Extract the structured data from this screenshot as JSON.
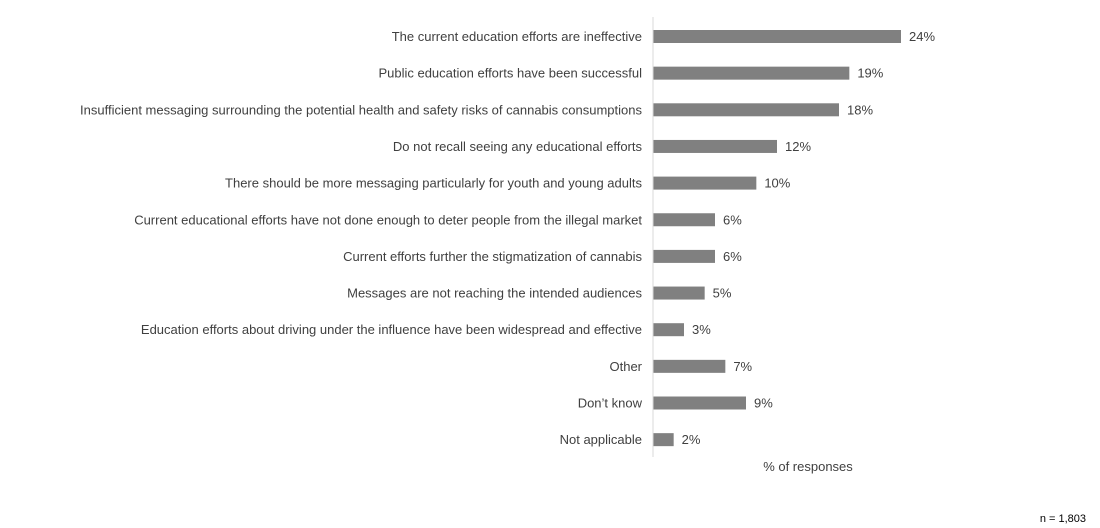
{
  "chart_data": {
    "type": "bar",
    "orientation": "horizontal",
    "categories": [
      "The current education efforts are ineffective",
      "Public education efforts have been successful",
      "Insufficient messaging surrounding the potential health and safety risks of cannabis consumptions",
      "Do not recall seeing any educational efforts",
      "There should be more messaging particularly for youth and young adults",
      "Current educational efforts have not done enough to deter people from the illegal market",
      "Current efforts further the stigmatization of cannabis",
      "Messages are not reaching the intended audiences",
      "Education efforts about driving under the influence have been widespread and effective",
      "Other",
      "Don’t know",
      "Not applicable"
    ],
    "values": [
      24,
      19,
      18,
      12,
      10,
      6,
      6,
      5,
      3,
      7,
      9,
      2
    ],
    "value_labels": [
      "24%",
      "19%",
      "18%",
      "12%",
      "10%",
      "6%",
      "6%",
      "5%",
      "3%",
      "7%",
      "9%",
      "2%"
    ],
    "xlabel": "% of responses",
    "xlim": [
      0,
      30
    ],
    "bar_color": "#808080",
    "axis_color": "#d9d9d9",
    "grid": false
  },
  "footnote": "n = 1,803"
}
